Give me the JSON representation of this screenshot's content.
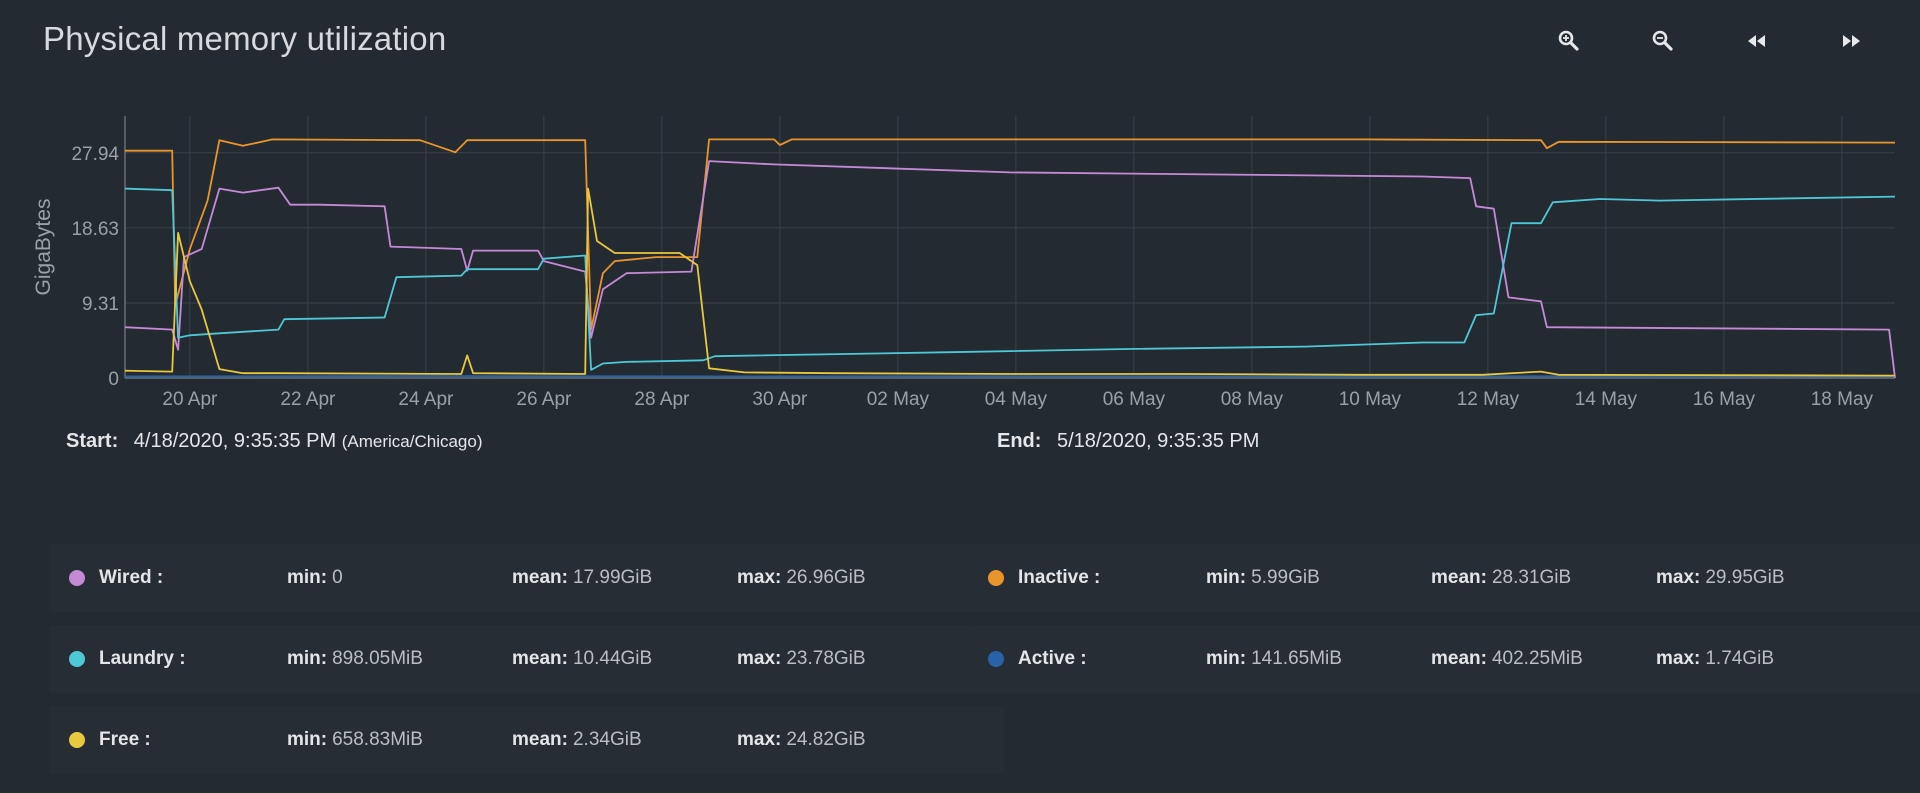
{
  "title": "Physical memory utilization",
  "toolbar": [
    {
      "name": "zoom-in-button",
      "icon": "zoom-in-icon"
    },
    {
      "name": "zoom-out-button",
      "icon": "zoom-out-icon"
    },
    {
      "name": "step-back-button",
      "icon": "rewind-icon"
    },
    {
      "name": "step-forward-button",
      "icon": "fast-forward-icon"
    }
  ],
  "timespan": {
    "start_label": "Start:",
    "start_value": "4/18/2020, 9:35:35 PM",
    "start_tz": "(America/Chicago)",
    "end_label": "End:",
    "end_value": "5/18/2020, 9:35:35 PM"
  },
  "chart_data": {
    "type": "line",
    "ylabel": "GigaBytes",
    "ylim": [
      0,
      32.5
    ],
    "yticks": [
      0,
      9.31,
      18.63,
      27.94
    ],
    "ytick_labels": [
      "0",
      "9.31",
      "18.63",
      "27.94"
    ],
    "xlim": [
      0,
      30
    ],
    "xticks": [
      1.1,
      3.1,
      5.1,
      7.1,
      9.1,
      11.1,
      13.1,
      15.1,
      17.1,
      19.1,
      21.1,
      23.1,
      25.1,
      27.1,
      29.1
    ],
    "xtick_labels": [
      "20 Apr",
      "22 Apr",
      "24 Apr",
      "26 Apr",
      "28 Apr",
      "30 Apr",
      "02 May",
      "04 May",
      "06 May",
      "08 May",
      "10 May",
      "12 May",
      "14 May",
      "16 May",
      "18 May"
    ],
    "series": [
      {
        "name": "Inactive",
        "color": "#e8952c",
        "points": [
          [
            0,
            28.2
          ],
          [
            0.8,
            28.2
          ],
          [
            0.85,
            9
          ],
          [
            1.1,
            16
          ],
          [
            1.4,
            22
          ],
          [
            1.6,
            29.5
          ],
          [
            2.0,
            28.8
          ],
          [
            2.5,
            29.6
          ],
          [
            5.0,
            29.5
          ],
          [
            5.6,
            28.0
          ],
          [
            5.8,
            29.5
          ],
          [
            7.8,
            29.5
          ],
          [
            7.9,
            6
          ],
          [
            8.1,
            13
          ],
          [
            8.3,
            14.5
          ],
          [
            9,
            15
          ],
          [
            9.7,
            15
          ],
          [
            9.9,
            29.6
          ],
          [
            11.0,
            29.6
          ],
          [
            11.1,
            28.9
          ],
          [
            11.3,
            29.6
          ],
          [
            21.0,
            29.6
          ],
          [
            24.0,
            29.5
          ],
          [
            24.1,
            28.5
          ],
          [
            24.3,
            29.3
          ],
          [
            30,
            29.2
          ]
        ]
      },
      {
        "name": "Wired",
        "color": "#c58ad6",
        "points": [
          [
            0,
            6.3
          ],
          [
            0.8,
            6.0
          ],
          [
            0.9,
            3.5
          ],
          [
            1.0,
            15
          ],
          [
            1.3,
            16
          ],
          [
            1.6,
            23.5
          ],
          [
            2,
            23
          ],
          [
            2.6,
            23.6
          ],
          [
            2.8,
            21.5
          ],
          [
            3.3,
            21.5
          ],
          [
            4.4,
            21.3
          ],
          [
            4.5,
            16.3
          ],
          [
            5.7,
            16
          ],
          [
            5.8,
            13.3
          ],
          [
            5.9,
            15.8
          ],
          [
            7,
            15.8
          ],
          [
            7.1,
            14.5
          ],
          [
            7.8,
            13.2
          ],
          [
            7.9,
            5
          ],
          [
            8.1,
            11
          ],
          [
            8.5,
            13
          ],
          [
            9.6,
            13.2
          ],
          [
            9.9,
            26.9
          ],
          [
            11,
            26.5
          ],
          [
            15,
            25.5
          ],
          [
            22,
            25
          ],
          [
            22.8,
            24.8
          ],
          [
            22.9,
            21.3
          ],
          [
            23.2,
            21
          ],
          [
            23.45,
            10
          ],
          [
            24.0,
            9.5
          ],
          [
            24.1,
            6.3
          ],
          [
            29.9,
            6.0
          ],
          [
            30,
            0
          ]
        ]
      },
      {
        "name": "Laundry",
        "color": "#4fc8d6",
        "points": [
          [
            0,
            23.5
          ],
          [
            0.8,
            23.3
          ],
          [
            0.9,
            5
          ],
          [
            1.1,
            5.3
          ],
          [
            1.5,
            5.5
          ],
          [
            2.6,
            6.0
          ],
          [
            2.7,
            7.3
          ],
          [
            4.4,
            7.5
          ],
          [
            4.6,
            12.5
          ],
          [
            5.7,
            12.7
          ],
          [
            5.8,
            13.5
          ],
          [
            7,
            13.5
          ],
          [
            7.1,
            14.8
          ],
          [
            7.8,
            15.2
          ],
          [
            7.9,
            1
          ],
          [
            8.1,
            1.8
          ],
          [
            8.5,
            2
          ],
          [
            9.8,
            2.2
          ],
          [
            10,
            2.7
          ],
          [
            14,
            3.2
          ],
          [
            17,
            3.6
          ],
          [
            20,
            3.9
          ],
          [
            22,
            4.4
          ],
          [
            22.7,
            4.4
          ],
          [
            22.9,
            7.8
          ],
          [
            23.2,
            8.0
          ],
          [
            23.5,
            19.2
          ],
          [
            24.0,
            19.2
          ],
          [
            24.2,
            21.8
          ],
          [
            25,
            22.2
          ],
          [
            26,
            22.0
          ],
          [
            30,
            22.5
          ]
        ]
      },
      {
        "name": "Active",
        "color": "#2862a8",
        "points": [
          [
            0,
            0.2
          ],
          [
            5,
            0.25
          ],
          [
            10,
            0.2
          ],
          [
            15,
            0.22
          ],
          [
            20,
            0.2
          ],
          [
            25,
            0.22
          ],
          [
            30,
            0.2
          ]
        ]
      },
      {
        "name": "Free",
        "color": "#e8c83c",
        "points": [
          [
            0,
            0.9
          ],
          [
            0.8,
            0.8
          ],
          [
            0.9,
            18
          ],
          [
            1.1,
            12
          ],
          [
            1.3,
            8.5
          ],
          [
            1.6,
            1.1
          ],
          [
            2,
            0.6
          ],
          [
            2.6,
            0.6
          ],
          [
            5.7,
            0.5
          ],
          [
            5.8,
            2.8
          ],
          [
            5.9,
            0.6
          ],
          [
            7.8,
            0.5
          ],
          [
            7.85,
            23.5
          ],
          [
            8.0,
            17
          ],
          [
            8.3,
            15.5
          ],
          [
            9.4,
            15.5
          ],
          [
            9.7,
            14
          ],
          [
            9.9,
            1.2
          ],
          [
            10.5,
            0.7
          ],
          [
            12,
            0.6
          ],
          [
            15,
            0.5
          ],
          [
            18,
            0.5
          ],
          [
            21,
            0.4
          ],
          [
            23,
            0.4
          ],
          [
            24,
            0.8
          ],
          [
            24.3,
            0.4
          ],
          [
            30,
            0.3
          ]
        ]
      }
    ]
  },
  "legend": [
    {
      "name": "Wired :",
      "color": "#c58ad6",
      "min_label": "min:",
      "min": "0",
      "mean_label": "mean:",
      "mean": "17.99GiB",
      "max_label": "max:",
      "max": "26.96GiB"
    },
    {
      "name": "Inactive :",
      "color": "#e8952c",
      "min_label": "min:",
      "min": "5.99GiB",
      "mean_label": "mean:",
      "mean": "28.31GiB",
      "max_label": "max:",
      "max": "29.95GiB"
    },
    {
      "name": "Laundry :",
      "color": "#4fc8d6",
      "min_label": "min:",
      "min": "898.05MiB",
      "mean_label": "mean:",
      "mean": "10.44GiB",
      "max_label": "max:",
      "max": "23.78GiB"
    },
    {
      "name": "Active :",
      "color": "#2862a8",
      "min_label": "min:",
      "min": "141.65MiB",
      "mean_label": "mean:",
      "mean": "402.25MiB",
      "max_label": "max:",
      "max": "1.74GiB"
    },
    {
      "name": "Free :",
      "color": "#e8c83c",
      "min_label": "min:",
      "min": "658.83MiB",
      "mean_label": "mean:",
      "mean": "2.34GiB",
      "max_label": "max:",
      "max": "24.82GiB"
    }
  ]
}
